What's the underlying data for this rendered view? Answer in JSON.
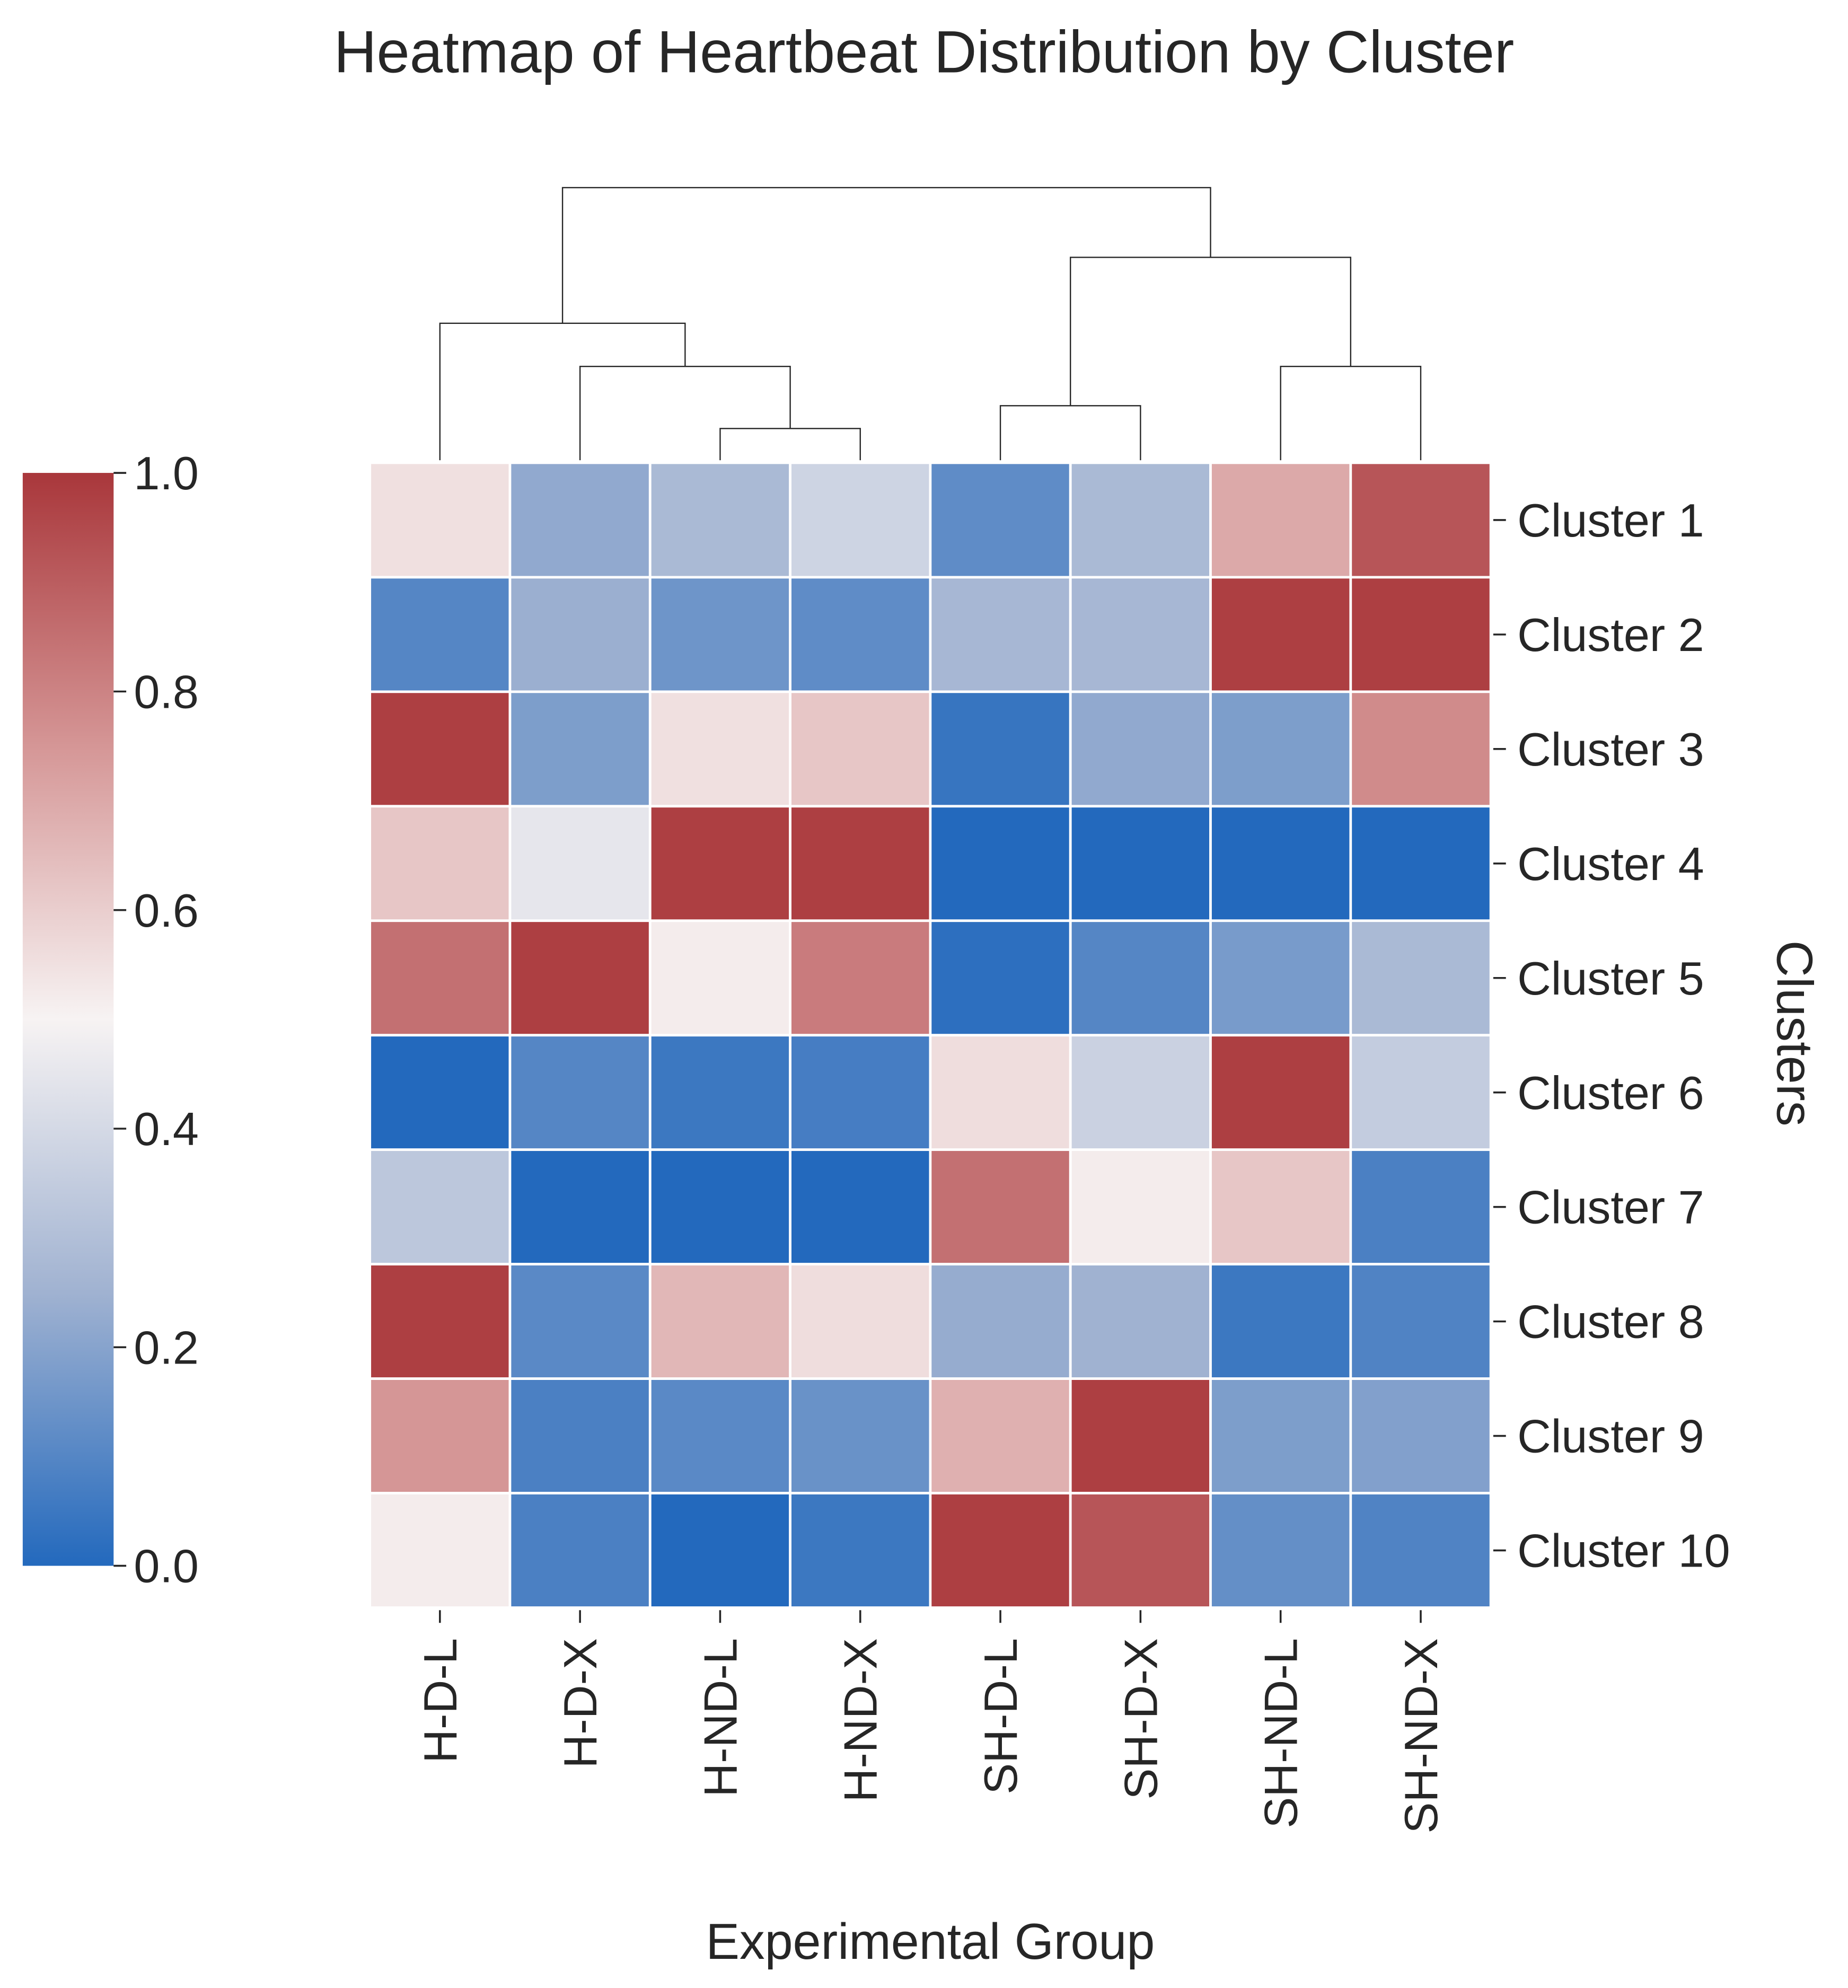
{
  "chart_data": {
    "type": "heatmap",
    "title": "Heatmap of Heartbeat Distribution by Cluster",
    "xlabel": "Experimental Group",
    "ylabel": "Clusters",
    "columns": [
      "H-D-L",
      "H-D-X",
      "H-ND-L",
      "H-ND-X",
      "SH-D-L",
      "SH-D-X",
      "SH-ND-L",
      "SH-ND-X"
    ],
    "rows": [
      "Cluster 1",
      "Cluster 2",
      "Cluster 3",
      "Cluster 4",
      "Cluster 5",
      "Cluster 6",
      "Cluster 7",
      "Cluster 8",
      "Cluster 9",
      "Cluster 10"
    ],
    "values": [
      [
        0.55,
        0.22,
        0.28,
        0.38,
        0.12,
        0.28,
        0.7,
        0.92
      ],
      [
        0.1,
        0.24,
        0.15,
        0.12,
        0.27,
        0.27,
        0.98,
        0.98
      ],
      [
        0.98,
        0.18,
        0.55,
        0.62,
        0.04,
        0.22,
        0.18,
        0.78
      ],
      [
        0.62,
        0.45,
        0.98,
        0.98,
        0.0,
        0.0,
        0.0,
        0.0
      ],
      [
        0.85,
        0.98,
        0.52,
        0.82,
        0.02,
        0.1,
        0.17,
        0.28
      ],
      [
        0.0,
        0.1,
        0.05,
        0.07,
        0.56,
        0.37,
        0.98,
        0.35
      ],
      [
        0.33,
        0.0,
        0.0,
        0.0,
        0.85,
        0.52,
        0.62,
        0.08
      ],
      [
        0.98,
        0.11,
        0.66,
        0.56,
        0.23,
        0.25,
        0.05,
        0.09
      ],
      [
        0.75,
        0.08,
        0.11,
        0.14,
        0.68,
        0.98,
        0.18,
        0.19
      ],
      [
        0.52,
        0.08,
        0.0,
        0.05,
        0.98,
        0.92,
        0.13,
        0.09
      ]
    ],
    "colorbar": {
      "range": [
        0,
        1
      ],
      "ticks": [
        "0.0",
        "0.2",
        "0.4",
        "0.6",
        "0.8",
        "1.0"
      ],
      "colormap": "vlag",
      "low_color": "#2369bd",
      "mid_color": "#f7f3f3",
      "high_color": "#a9373b"
    },
    "column_dendrogram": true,
    "grid": false
  }
}
